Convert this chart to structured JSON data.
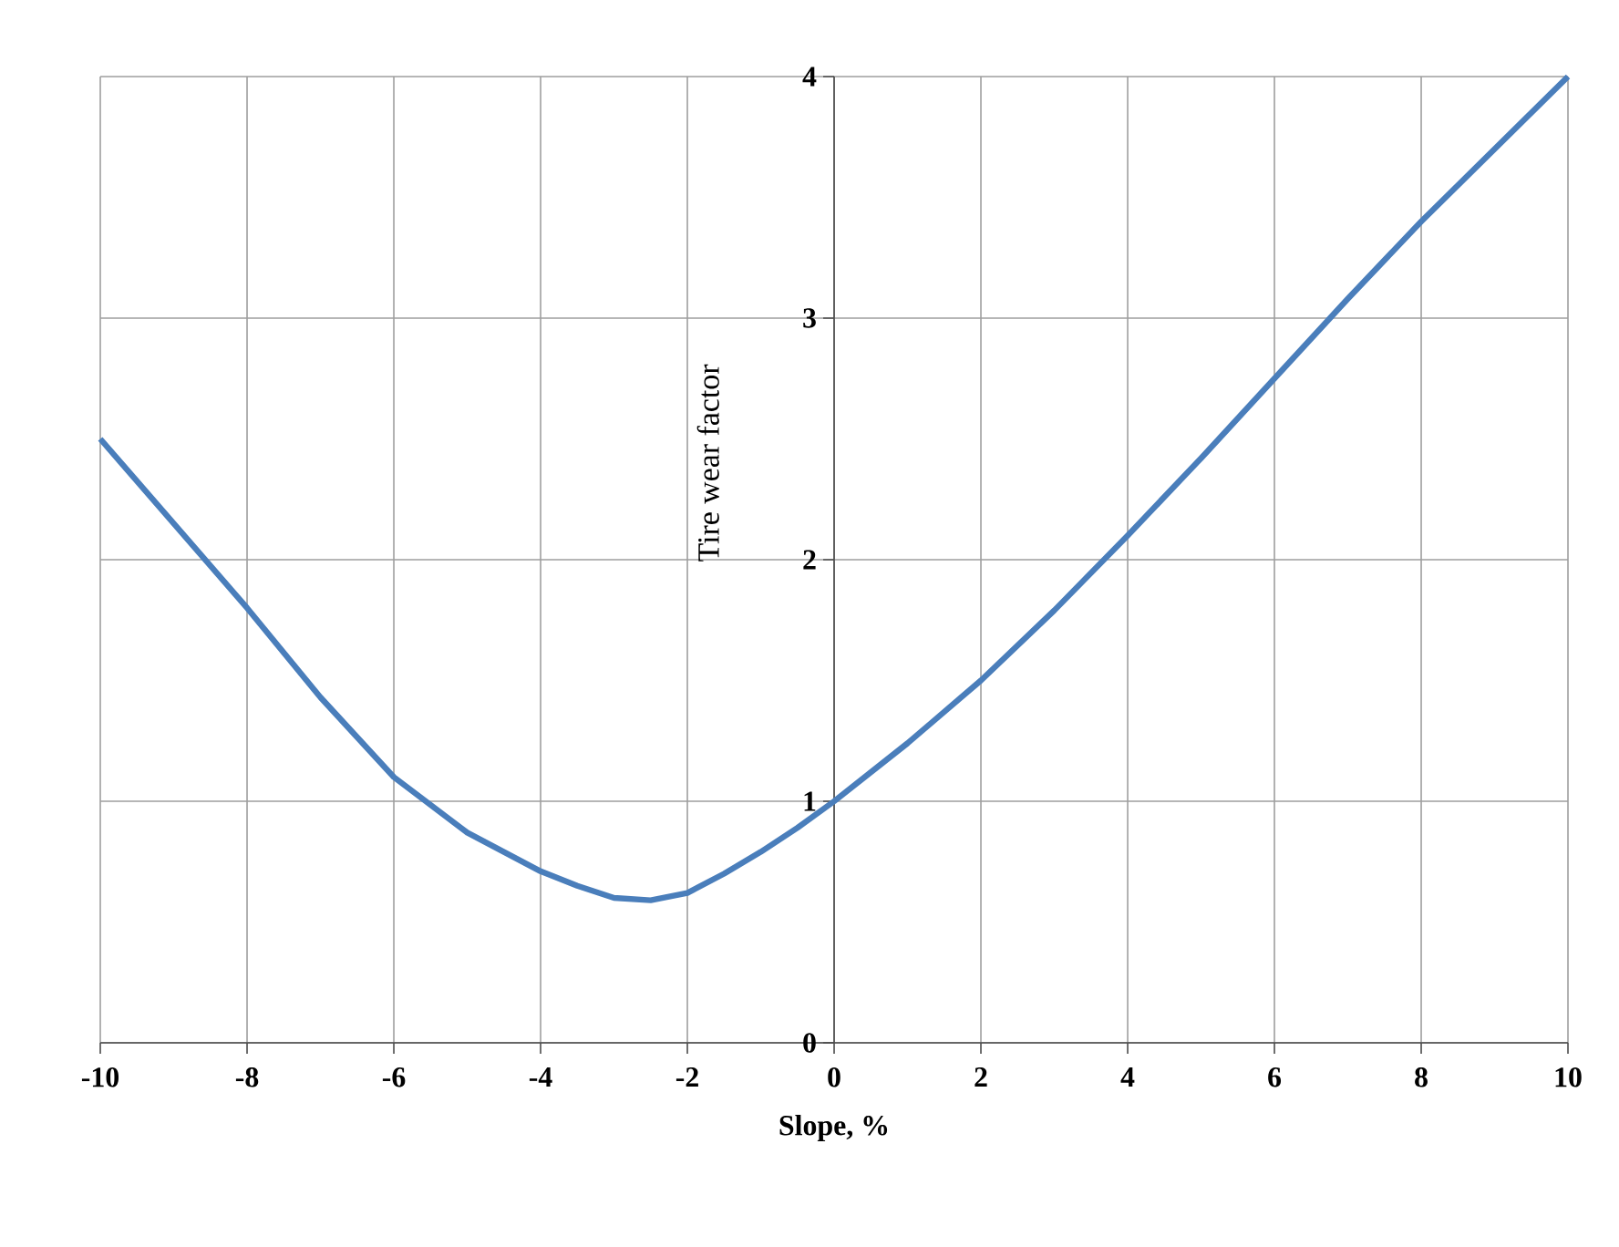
{
  "chart_data": {
    "type": "line",
    "xlabel": "Slope,  %",
    "ylabel": "Tire wear factor",
    "x": [
      -10,
      -9,
      -8,
      -7,
      -6,
      -5,
      -4,
      -3.5,
      -3,
      -2.5,
      -2,
      -1.5,
      -1,
      -0.5,
      0,
      1,
      2,
      3,
      4,
      5,
      6,
      7,
      8,
      9,
      10
    ],
    "series": [
      {
        "color": "#4a7ebb",
        "line_style": "solid",
        "values": [
          2.5,
          2.15,
          1.8,
          1.43,
          1.1,
          0.87,
          0.71,
          0.65,
          0.6,
          0.59,
          0.62,
          0.7,
          0.79,
          0.89,
          1.0,
          1.24,
          1.5,
          1.79,
          2.1,
          2.42,
          2.75,
          3.08,
          3.4,
          3.7,
          4.0
        ]
      }
    ],
    "xlim": [
      -10,
      10
    ],
    "ylim": [
      0,
      4
    ],
    "xticks": [
      -10,
      -8,
      -6,
      -4,
      -2,
      0,
      2,
      4,
      6,
      8,
      10
    ],
    "yticks": [
      0,
      1,
      2,
      3,
      4
    ],
    "grid": true
  }
}
